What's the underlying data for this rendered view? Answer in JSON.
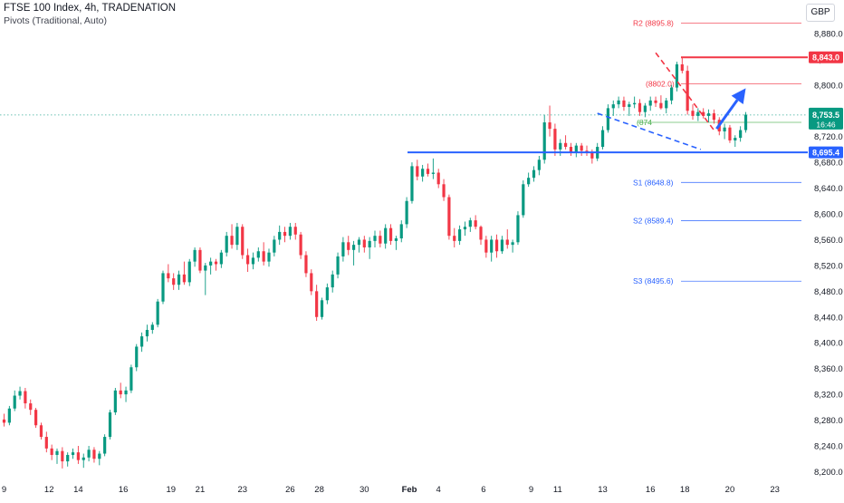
{
  "header": {
    "title": "FTSE 100 Index, 4h, TRADENATION",
    "indicator": "Pivots (Traditional, Auto)"
  },
  "currency": "GBP",
  "colors": {
    "up": "#089981",
    "down": "#f23645",
    "support": "#2962ff",
    "resistance": "#f23645",
    "pivot": "#4caf50",
    "axis_text": "#131722"
  },
  "chart_data": {
    "type": "candlestick",
    "timeframe": "4h",
    "ylim": [
      8195,
      8915
    ],
    "y_ticks": [
      8200,
      8240,
      8280,
      8320,
      8360,
      8400,
      8440,
      8480,
      8520,
      8560,
      8600,
      8640,
      8680,
      8720,
      8760,
      8800,
      8840,
      8880
    ],
    "y_tick_labels": [
      "8,200.0",
      "8,240.0",
      "8,280.0",
      "8,320.0",
      "8,360.0",
      "8,400.0",
      "8,440.0",
      "8,480.0",
      "8,520.0",
      "8,560.0",
      "8,600.0",
      "8,640.0",
      "8,680.0",
      "8,720.0",
      "8,760.0",
      "8,800.0",
      "8,840.0",
      "8,880.0"
    ],
    "x_tick_labels": [
      "9",
      "12",
      "14",
      "16",
      "19",
      "21",
      "23",
      "26",
      "28",
      "30",
      "Feb",
      "4",
      "6",
      "9",
      "11",
      "13",
      "16",
      "18",
      "20",
      "23"
    ],
    "x_tick_bars": [
      0,
      8.5,
      14,
      22.5,
      31.5,
      37,
      45,
      54,
      59.5,
      68,
      76.5,
      82,
      90.5,
      99.5,
      104.5,
      113,
      122,
      128.5,
      137,
      145.5
    ],
    "candles": [
      [
        8281,
        8290,
        8270,
        8276
      ],
      [
        8276,
        8302,
        8272,
        8298
      ],
      [
        8298,
        8326,
        8294,
        8318
      ],
      [
        8318,
        8332,
        8312,
        8325
      ],
      [
        8325,
        8330,
        8298,
        8306
      ],
      [
        8306,
        8312,
        8288,
        8296
      ],
      [
        8296,
        8299,
        8268,
        8272
      ],
      [
        8272,
        8276,
        8250,
        8254
      ],
      [
        8254,
        8262,
        8230,
        8236
      ],
      [
        8236,
        8242,
        8218,
        8226
      ],
      [
        8226,
        8236,
        8212,
        8232
      ],
      [
        8232,
        8238,
        8205,
        8216
      ],
      [
        8216,
        8230,
        8208,
        8226
      ],
      [
        8226,
        8236,
        8220,
        8230
      ],
      [
        8230,
        8240,
        8212,
        8218
      ],
      [
        8218,
        8228,
        8206,
        8222
      ],
      [
        8222,
        8240,
        8216,
        8234
      ],
      [
        8234,
        8238,
        8214,
        8220
      ],
      [
        8220,
        8232,
        8210,
        8228
      ],
      [
        8228,
        8258,
        8224,
        8254
      ],
      [
        8254,
        8296,
        8250,
        8292
      ],
      [
        8292,
        8330,
        8288,
        8326
      ],
      [
        8326,
        8338,
        8314,
        8320
      ],
      [
        8320,
        8332,
        8308,
        8326
      ],
      [
        8326,
        8366,
        8322,
        8362
      ],
      [
        8362,
        8398,
        8356,
        8394
      ],
      [
        8394,
        8416,
        8386,
        8410
      ],
      [
        8410,
        8428,
        8402,
        8420
      ],
      [
        8420,
        8432,
        8414,
        8428
      ],
      [
        8428,
        8468,
        8424,
        8464
      ],
      [
        8464,
        8512,
        8460,
        8508
      ],
      [
        8508,
        8522,
        8494,
        8500
      ],
      [
        8500,
        8508,
        8482,
        8490
      ],
      [
        8490,
        8512,
        8482,
        8506
      ],
      [
        8506,
        8526,
        8490,
        8494
      ],
      [
        8494,
        8530,
        8488,
        8526
      ],
      [
        8526,
        8548,
        8518,
        8544
      ],
      [
        8544,
        8548,
        8508,
        8512
      ],
      [
        8512,
        8524,
        8474,
        8520
      ],
      [
        8520,
        8532,
        8506,
        8526
      ],
      [
        8526,
        8530,
        8512,
        8522
      ],
      [
        8522,
        8544,
        8516,
        8540
      ],
      [
        8540,
        8572,
        8534,
        8566
      ],
      [
        8566,
        8584,
        8546,
        8552
      ],
      [
        8552,
        8586,
        8544,
        8580
      ],
      [
        8580,
        8584,
        8530,
        8536
      ],
      [
        8536,
        8546,
        8510,
        8522
      ],
      [
        8522,
        8540,
        8514,
        8532
      ],
      [
        8532,
        8548,
        8526,
        8542
      ],
      [
        8542,
        8556,
        8520,
        8526
      ],
      [
        8526,
        8546,
        8518,
        8540
      ],
      [
        8540,
        8566,
        8534,
        8560
      ],
      [
        8560,
        8582,
        8552,
        8572
      ],
      [
        8572,
        8580,
        8556,
        8566
      ],
      [
        8566,
        8586,
        8560,
        8580
      ],
      [
        8580,
        8586,
        8560,
        8568
      ],
      [
        8568,
        8572,
        8530,
        8536
      ],
      [
        8536,
        8542,
        8502,
        8508
      ],
      [
        8508,
        8514,
        8474,
        8480
      ],
      [
        8480,
        8490,
        8434,
        8440
      ],
      [
        8440,
        8470,
        8436,
        8466
      ],
      [
        8466,
        8492,
        8460,
        8486
      ],
      [
        8486,
        8512,
        8478,
        8506
      ],
      [
        8506,
        8540,
        8500,
        8534
      ],
      [
        8534,
        8564,
        8526,
        8556
      ],
      [
        8556,
        8566,
        8536,
        8544
      ],
      [
        8544,
        8558,
        8520,
        8552
      ],
      [
        8552,
        8564,
        8540,
        8560
      ],
      [
        8560,
        8566,
        8540,
        8548
      ],
      [
        8548,
        8564,
        8530,
        8558
      ],
      [
        8558,
        8574,
        8548,
        8566
      ],
      [
        8566,
        8574,
        8548,
        8554
      ],
      [
        8554,
        8584,
        8546,
        8578
      ],
      [
        8578,
        8584,
        8552,
        8558
      ],
      [
        8558,
        8566,
        8544,
        8562
      ],
      [
        8562,
        8590,
        8556,
        8584
      ],
      [
        8584,
        8626,
        8578,
        8620
      ],
      [
        8620,
        8680,
        8616,
        8674
      ],
      [
        8674,
        8684,
        8652,
        8658
      ],
      [
        8658,
        8676,
        8650,
        8670
      ],
      [
        8670,
        8678,
        8658,
        8662
      ],
      [
        8662,
        8686,
        8654,
        8664
      ],
      [
        8664,
        8670,
        8640,
        8646
      ],
      [
        8646,
        8654,
        8620,
        8626
      ],
      [
        8626,
        8630,
        8560,
        8566
      ],
      [
        8566,
        8578,
        8548,
        8558
      ],
      [
        8558,
        8582,
        8552,
        8576
      ],
      [
        8576,
        8588,
        8566,
        8580
      ],
      [
        8580,
        8594,
        8572,
        8590
      ],
      [
        8590,
        8598,
        8576,
        8580
      ],
      [
        8580,
        8582,
        8552,
        8560
      ],
      [
        8560,
        8566,
        8532,
        8540
      ],
      [
        8540,
        8566,
        8526,
        8560
      ],
      [
        8560,
        8568,
        8532,
        8542
      ],
      [
        8542,
        8566,
        8538,
        8560
      ],
      [
        8560,
        8576,
        8546,
        8552
      ],
      [
        8552,
        8560,
        8540,
        8556
      ],
      [
        8556,
        8604,
        8552,
        8598
      ],
      [
        8598,
        8652,
        8594,
        8646
      ],
      [
        8646,
        8664,
        8642,
        8656
      ],
      [
        8656,
        8674,
        8650,
        8668
      ],
      [
        8668,
        8690,
        8660,
        8684
      ],
      [
        8684,
        8754,
        8678,
        8742
      ],
      [
        8742,
        8768,
        8720,
        8732
      ],
      [
        8732,
        8740,
        8690,
        8700
      ],
      [
        8700,
        8716,
        8690,
        8710
      ],
      [
        8710,
        8722,
        8700,
        8704
      ],
      [
        8704,
        8710,
        8690,
        8696
      ],
      [
        8696,
        8710,
        8688,
        8706
      ],
      [
        8706,
        8710,
        8690,
        8698
      ],
      [
        8698,
        8706,
        8690,
        8696
      ],
      [
        8696,
        8700,
        8678,
        8686
      ],
      [
        8686,
        8710,
        8682,
        8704
      ],
      [
        8704,
        8736,
        8700,
        8730
      ],
      [
        8730,
        8770,
        8726,
        8764
      ],
      [
        8764,
        8776,
        8752,
        8770
      ],
      [
        8770,
        8782,
        8764,
        8776
      ],
      [
        8776,
        8782,
        8760,
        8766
      ],
      [
        8766,
        8774,
        8752,
        8770
      ],
      [
        8770,
        8782,
        8764,
        8772
      ],
      [
        8772,
        8778,
        8752,
        8758
      ],
      [
        8758,
        8772,
        8750,
        8768
      ],
      [
        8768,
        8782,
        8760,
        8776
      ],
      [
        8776,
        8782,
        8766,
        8772
      ],
      [
        8772,
        8784,
        8762,
        8764
      ],
      [
        8764,
        8780,
        8756,
        8776
      ],
      [
        8776,
        8800,
        8770,
        8796
      ],
      [
        8796,
        8836,
        8790,
        8832
      ],
      [
        8832,
        8842,
        8818,
        8822
      ],
      [
        8822,
        8830,
        8754,
        8760
      ],
      [
        8760,
        8770,
        8746,
        8752
      ],
      [
        8752,
        8764,
        8744,
        8758
      ],
      [
        8758,
        8764,
        8748,
        8752
      ],
      [
        8752,
        8762,
        8742,
        8756
      ],
      [
        8756,
        8762,
        8740,
        8746
      ],
      [
        8746,
        8750,
        8722,
        8728
      ],
      [
        8728,
        8740,
        8716,
        8734
      ],
      [
        8734,
        8738,
        8710,
        8714
      ],
      [
        8714,
        8722,
        8704,
        8718
      ],
      [
        8718,
        8736,
        8712,
        8730
      ],
      [
        8730,
        8758,
        8726,
        8754
      ]
    ],
    "levels": [
      {
        "name": "R2",
        "label": "R2 (8895.8)",
        "value": 8895.8,
        "style": "pivot-r"
      },
      {
        "name": "R1",
        "label": "(8802.0)",
        "value": 8802.0,
        "style": "pivot-r"
      },
      {
        "name": "P",
        "label": "(874",
        "value": 8742,
        "style": "pivot-p"
      },
      {
        "name": "S1",
        "label": "S1 (8648.8)",
        "value": 8648.8,
        "style": "pivot-s"
      },
      {
        "name": "S2",
        "label": "S2 (8589.4)",
        "value": 8589.4,
        "style": "pivot-s"
      },
      {
        "name": "S3",
        "label": "S3 (8495.6)",
        "value": 8495.6,
        "style": "pivot-s"
      }
    ],
    "resistance": {
      "value": 8843.0,
      "label": "8,843.0"
    },
    "support": {
      "value": 8695.4,
      "label": "8,695.4"
    },
    "last_price": {
      "value": 8753.5,
      "label": "8,753.5",
      "countdown": "16:46"
    },
    "trendline_upper": {
      "from": [
        123,
        8850
      ],
      "to": [
        134,
        8730
      ]
    },
    "trendline_lower": {
      "from": [
        112,
        8756
      ],
      "to": [
        131.5,
        8700
      ]
    },
    "forecast_arrow": {
      "from": [
        134.5,
        8732
      ],
      "to": [
        140,
        8795
      ]
    }
  }
}
